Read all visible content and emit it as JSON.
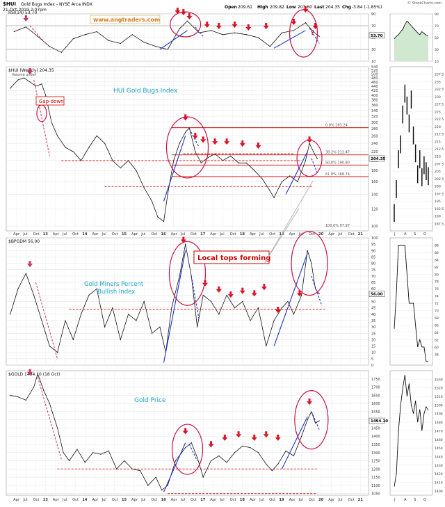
{
  "header": {
    "symbol": "$HUI",
    "name": "Gold Bugs Index - NYSE Arca  INDX",
    "date": "21-Oct-2019 2:07pm",
    "open_label": "Open",
    "open": "209.61",
    "high_label": "High",
    "high": "209.82",
    "low_label": "Low",
    "low": "203.60",
    "last_label": "Last",
    "last": "204.35",
    "chg_label": "Chg",
    "chg": "-3.84 (-1.85%)",
    "credit": "© StockCharts.com"
  },
  "annotations": {
    "watermark": "www.angtraders.com",
    "hui_title": "HUI Gold Bugs Index",
    "gap_down": "Gap-down",
    "local_tops": "Local tops forming",
    "bpgdm_title_1": "Gold Miners Percent",
    "bpgdm_title_2": "Bullish Index",
    "gold_title": "Gold Price",
    "question": "?"
  },
  "colors": {
    "annotation_red": "#cc0000",
    "arrow_blue": "#1a33cc",
    "marker_red": "#dd1122",
    "marker_pink": "#cc3366",
    "title_cyan": "#17a3c4",
    "orange": "#d47b1a"
  },
  "x_labels": [
    "Apr",
    "Jul",
    "Oct",
    "13",
    "Apr",
    "Jul",
    "Oct",
    "14",
    "Apr",
    "Jul",
    "Oct",
    "15",
    "Apr",
    "Jul",
    "Oct",
    "16",
    "Apr",
    "Jul",
    "Oct",
    "17",
    "Apr",
    "Jul",
    "Oct",
    "18",
    "Apr",
    "Jul",
    "Oct",
    "19",
    "Apr",
    "Jul",
    "Oct",
    "20",
    "Apr",
    "Jul",
    "Oct",
    "21"
  ],
  "side_x_labels": [
    "J",
    "A",
    "S",
    "O"
  ],
  "chart_data": [
    {
      "id": "rsi",
      "type": "line",
      "title": "RSI(14) 53.70",
      "ylim": [
        10,
        90
      ],
      "yticks": [
        10,
        30,
        50,
        70,
        90
      ],
      "last": "53.70",
      "x": [
        2012.2,
        2012.5,
        2012.8,
        2013.1,
        2013.4,
        2013.7,
        2014.0,
        2014.3,
        2014.6,
        2014.9,
        2015.2,
        2015.5,
        2015.8,
        2016.1,
        2016.4,
        2016.6,
        2016.9,
        2017.2,
        2017.5,
        2017.8,
        2018.1,
        2018.4,
        2018.7,
        2019.0,
        2019.3,
        2019.6,
        2019.8,
        2019.95
      ],
      "values": [
        60,
        68,
        52,
        35,
        25,
        48,
        55,
        60,
        45,
        40,
        55,
        42,
        35,
        30,
        65,
        78,
        58,
        62,
        55,
        58,
        55,
        50,
        35,
        58,
        62,
        75,
        60,
        52
      ]
    },
    {
      "id": "hui",
      "type": "line",
      "title": "$HUI (Weekly) 204.35",
      "legend": "Volume undef",
      "ylim": [
        95,
        540
      ],
      "log": true,
      "yticks": [
        100,
        120,
        140,
        160,
        180,
        200,
        220,
        240,
        260,
        280,
        300,
        320,
        340,
        360,
        380,
        400,
        420,
        440,
        460,
        480,
        500,
        520,
        540
      ],
      "fib": [
        {
          "label": "0.0% 283.24",
          "value": 283.24
        },
        {
          "label": "38.2% 212.47",
          "value": 212.47
        },
        {
          "label": "50.0% 190.80",
          "value": 190.8
        },
        {
          "label": "61.8% 168.74",
          "value": 168.74
        },
        {
          "label": "100.0% 97.97",
          "value": 97.97
        }
      ],
      "last": "204.35",
      "x": [
        2012.1,
        2012.3,
        2012.45,
        2012.6,
        2012.75,
        2012.9,
        2013.0,
        2013.15,
        2013.3,
        2013.5,
        2013.7,
        2013.9,
        2014.1,
        2014.3,
        2014.5,
        2014.7,
        2014.9,
        2015.1,
        2015.3,
        2015.5,
        2015.7,
        2015.85,
        2016.0,
        2016.1,
        2016.25,
        2016.4,
        2016.55,
        2016.65,
        2016.8,
        2016.95,
        2017.1,
        2017.3,
        2017.5,
        2017.7,
        2017.9,
        2018.1,
        2018.3,
        2018.5,
        2018.7,
        2018.8,
        2019.0,
        2019.2,
        2019.4,
        2019.6,
        2019.7,
        2019.8,
        2019.9
      ],
      "values": [
        430,
        470,
        480,
        460,
        440,
        450,
        400,
        300,
        260,
        230,
        220,
        200,
        230,
        260,
        240,
        200,
        185,
        200,
        180,
        150,
        130,
        110,
        105,
        140,
        200,
        240,
        270,
        283,
        220,
        195,
        205,
        215,
        200,
        210,
        195,
        195,
        180,
        165,
        145,
        135,
        160,
        170,
        160,
        200,
        240,
        220,
        204
      ]
    },
    {
      "id": "bpgdm",
      "type": "line",
      "title": "$BPGDM 56.00",
      "ylim": [
        0,
        100
      ],
      "yticks": [
        0,
        5,
        10,
        15,
        20,
        25,
        30,
        35,
        40,
        45,
        50,
        55,
        60,
        65,
        70,
        75,
        80,
        85,
        90,
        95,
        100
      ],
      "last": "56.00",
      "x": [
        2012.1,
        2012.3,
        2012.5,
        2012.7,
        2012.9,
        2013.1,
        2013.3,
        2013.5,
        2013.7,
        2013.9,
        2014.1,
        2014.3,
        2014.5,
        2014.7,
        2014.9,
        2015.1,
        2015.3,
        2015.5,
        2015.7,
        2015.9,
        2016.05,
        2016.2,
        2016.4,
        2016.55,
        2016.7,
        2016.85,
        2017.0,
        2017.2,
        2017.4,
        2017.6,
        2017.8,
        2018.0,
        2018.2,
        2018.4,
        2018.6,
        2018.8,
        2019.0,
        2019.15,
        2019.3,
        2019.5,
        2019.65,
        2019.75,
        2019.85,
        2019.95
      ],
      "values": [
        40,
        60,
        72,
        55,
        35,
        15,
        10,
        35,
        20,
        40,
        55,
        60,
        30,
        45,
        20,
        40,
        35,
        50,
        25,
        30,
        10,
        45,
        70,
        95,
        70,
        30,
        55,
        50,
        40,
        55,
        45,
        50,
        35,
        45,
        15,
        35,
        45,
        50,
        40,
        55,
        90,
        80,
        60,
        56
      ]
    },
    {
      "id": "gold",
      "type": "line",
      "title": "$GOLD 1494.10 (18 Oct)",
      "ylim": [
        1040,
        1800
      ],
      "yticks": [
        1050,
        1100,
        1150,
        1200,
        1250,
        1300,
        1350,
        1400,
        1450,
        1500,
        1550,
        1600,
        1650,
        1700,
        1750
      ],
      "last": "1494.10",
      "x": [
        2012.1,
        2012.3,
        2012.5,
        2012.7,
        2012.8,
        2012.95,
        2013.1,
        2013.3,
        2013.45,
        2013.6,
        2013.8,
        2014.0,
        2014.2,
        2014.4,
        2014.6,
        2014.8,
        2015.0,
        2015.2,
        2015.4,
        2015.6,
        2015.8,
        2015.95,
        2016.1,
        2016.3,
        2016.55,
        2016.7,
        2016.85,
        2017.0,
        2017.2,
        2017.4,
        2017.6,
        2017.8,
        2018.0,
        2018.2,
        2018.4,
        2018.6,
        2018.75,
        2018.9,
        2019.1,
        2019.3,
        2019.5,
        2019.65,
        2019.75,
        2019.85,
        2019.95
      ],
      "values": [
        1650,
        1640,
        1620,
        1700,
        1780,
        1680,
        1600,
        1450,
        1300,
        1250,
        1320,
        1240,
        1300,
        1290,
        1310,
        1200,
        1250,
        1200,
        1190,
        1100,
        1150,
        1070,
        1100,
        1250,
        1330,
        1360,
        1270,
        1150,
        1250,
        1280,
        1240,
        1300,
        1340,
        1330,
        1300,
        1230,
        1190,
        1230,
        1310,
        1280,
        1400,
        1500,
        1550,
        1480,
        1494
      ]
    },
    {
      "id": "rsi_side",
      "type": "area",
      "ylim": [
        10,
        90
      ],
      "yticks": [
        10,
        30,
        50,
        70,
        90
      ],
      "x": [
        0,
        1,
        2,
        3,
        4,
        5,
        6,
        7,
        8,
        9,
        10,
        11,
        12,
        13,
        14,
        15,
        16
      ],
      "values": [
        48,
        52,
        55,
        60,
        64,
        72,
        78,
        74,
        70,
        66,
        62,
        58,
        55,
        60,
        57,
        54,
        53.7
      ]
    },
    {
      "id": "hui_side",
      "type": "bar",
      "ylim": [
        185,
        240
      ],
      "yticks": [
        187.5,
        190.0,
        192.5,
        195.0,
        197.5,
        200.0,
        202.5,
        205.0,
        207.5,
        210.0,
        212.5,
        215.0,
        217.5,
        220.0,
        222.5,
        225.0,
        227.5,
        230.0,
        232.5,
        235.0,
        237.5
      ],
      "x": [
        0,
        1,
        2,
        3,
        4,
        5,
        6,
        7,
        8,
        9,
        10,
        11,
        12,
        13,
        14,
        15,
        16
      ],
      "values": [
        192,
        200,
        210,
        215,
        225,
        232,
        228,
        222,
        230,
        218,
        212,
        205,
        210,
        204,
        208,
        206,
        204.35
      ]
    },
    {
      "id": "bpgdm_side",
      "type": "line",
      "ylim": [
        55,
        90
      ],
      "yticks": [
        58,
        60,
        62,
        64,
        66,
        68,
        70,
        72,
        74,
        76,
        78,
        80,
        82,
        84,
        86,
        88
      ],
      "x": [
        0,
        1,
        2,
        3,
        4,
        5,
        6,
        7,
        8,
        9,
        10,
        11,
        12,
        13,
        14,
        15,
        16
      ],
      "values": [
        65,
        75,
        88,
        88,
        88,
        88,
        80,
        72,
        72,
        72,
        66,
        60,
        62,
        60,
        60,
        56,
        56
      ]
    },
    {
      "id": "gold_side",
      "type": "line",
      "ylim": [
        1395,
        1540
      ],
      "yticks": [
        1400,
        1410,
        1420,
        1430,
        1440,
        1450,
        1460,
        1470,
        1480,
        1490,
        1500,
        1510,
        1520,
        1530
      ],
      "x": [
        0,
        1,
        2,
        3,
        4,
        5,
        6,
        7,
        8,
        9,
        10,
        11,
        12,
        13,
        14,
        15,
        16
      ],
      "values": [
        1405,
        1420,
        1470,
        1500,
        1520,
        1535,
        1510,
        1525,
        1500,
        1490,
        1505,
        1480,
        1495,
        1470,
        1490,
        1498,
        1494
      ]
    }
  ]
}
